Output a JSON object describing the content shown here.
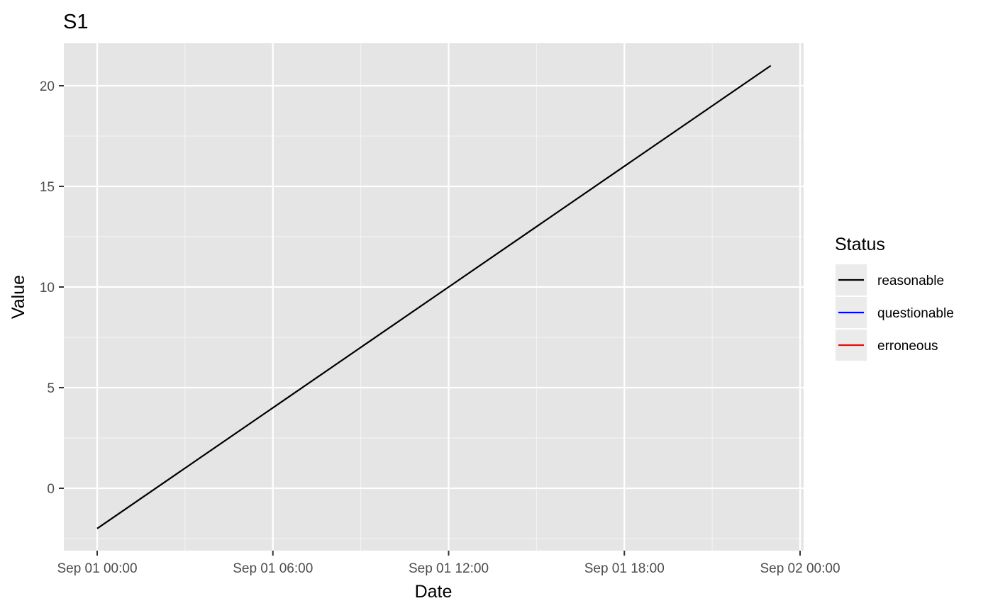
{
  "chart_data": {
    "type": "line",
    "title": "S1",
    "xlabel": "Date",
    "ylabel": "Value",
    "x_ticks": [
      "Sep 01 00:00",
      "Sep 01 06:00",
      "Sep 01 12:00",
      "Sep 01 18:00",
      "Sep 02 00:00"
    ],
    "y_ticks": [
      0,
      5,
      10,
      15,
      20
    ],
    "xlim": [
      "2024-09-01T00:00",
      "2024-09-02T00:00"
    ],
    "ylim": [
      -3,
      22
    ],
    "grid": true,
    "legend": {
      "title": "Status",
      "position": "right",
      "entries": [
        {
          "label": "reasonable",
          "color": "#000000"
        },
        {
          "label": "questionable",
          "color": "#0000ff"
        },
        {
          "label": "erroneous",
          "color": "#ff0000"
        }
      ]
    },
    "series": [
      {
        "name": "reasonable",
        "color": "#000000",
        "points": [
          {
            "x": "2024-09-01T00:00",
            "y": -2
          },
          {
            "x": "2024-09-01T23:00",
            "y": 21
          }
        ]
      }
    ]
  }
}
